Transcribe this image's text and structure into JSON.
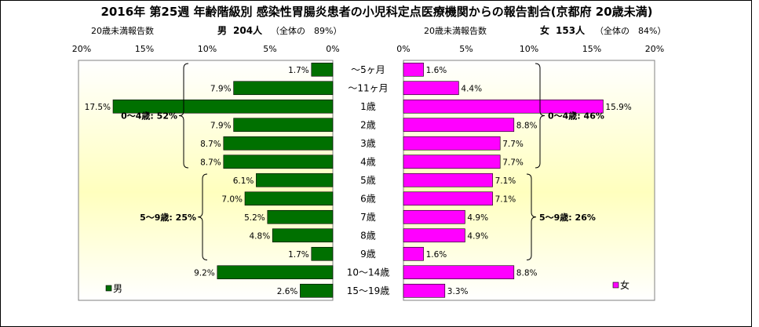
{
  "chart_data": {
    "type": "bar",
    "orientation": "horizontal",
    "layout": "population-pyramid",
    "title": "2016年 第25週 年齢階級別 感染性胃腸炎患者の小児科定点医療機関からの報告割合(京都府 20歳未満)",
    "categories": [
      "～5ヶ月",
      "～11ヶ月",
      "1歳",
      "2歳",
      "3歳",
      "4歳",
      "5歳",
      "6歳",
      "7歳",
      "8歳",
      "9歳",
      "10～14歳",
      "15～19歳"
    ],
    "value_suffix": "%",
    "x_ticks": [
      "20%",
      "15%",
      "10%",
      "5%",
      "0%"
    ],
    "x_ticks_right": [
      "0%",
      "5%",
      "10%",
      "15%",
      "20%"
    ],
    "xlim": [
      0,
      20
    ],
    "series": [
      {
        "name": "男",
        "side": "left",
        "color": "#007000",
        "header": {
          "label": "20歳未満報告数",
          "sex": "男",
          "count": "204人",
          "share": "（全体の　89%）"
        },
        "values": [
          1.7,
          7.9,
          17.5,
          7.9,
          8.7,
          8.7,
          6.1,
          7.0,
          5.2,
          4.8,
          1.7,
          9.2,
          2.6
        ],
        "groups": [
          {
            "label": "0～4歳: 52%",
            "from": 0,
            "to": 5
          },
          {
            "label": "5～9歳: 25%",
            "from": 6,
            "to": 10
          }
        ]
      },
      {
        "name": "女",
        "side": "right",
        "color": "#ff00ff",
        "header": {
          "label": "20歳未満報告数",
          "sex": "女",
          "count": "153人",
          "share": "（全体の　84%）"
        },
        "values": [
          1.6,
          4.4,
          15.9,
          8.8,
          7.7,
          7.7,
          7.1,
          7.1,
          4.9,
          4.9,
          1.6,
          8.8,
          3.3
        ],
        "groups": [
          {
            "label": "0～4歳: 46%",
            "from": 0,
            "to": 5
          },
          {
            "label": "5～9歳: 26%",
            "from": 6,
            "to": 10
          }
        ]
      }
    ]
  }
}
